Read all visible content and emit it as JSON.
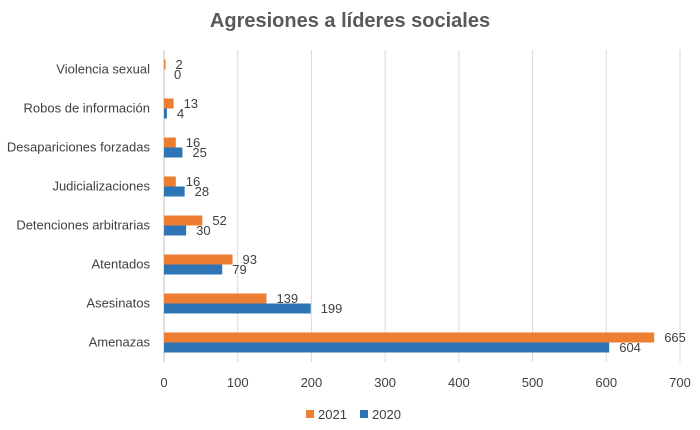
{
  "chart_data": {
    "type": "bar",
    "orientation": "horizontal",
    "title": "Agresiones a líderes sociales",
    "categories": [
      "Amenazas",
      "Asesinatos",
      "Atentados",
      "Detenciones arbitrarias",
      "Judicializaciones",
      "Desapariciones forzadas",
      "Robos de información",
      "Violencia sexual"
    ],
    "series": [
      {
        "name": "2021",
        "color": "#ED7D31",
        "values": [
          665,
          139,
          93,
          52,
          16,
          16,
          13,
          2
        ]
      },
      {
        "name": "2020",
        "color": "#2E75B6",
        "values": [
          604,
          199,
          79,
          30,
          28,
          25,
          4,
          0
        ]
      }
    ],
    "xlim": [
      0,
      700
    ],
    "xticks": [
      0,
      100,
      200,
      300,
      400,
      500,
      600,
      700
    ],
    "grid": true,
    "legend": "bottom-center"
  }
}
